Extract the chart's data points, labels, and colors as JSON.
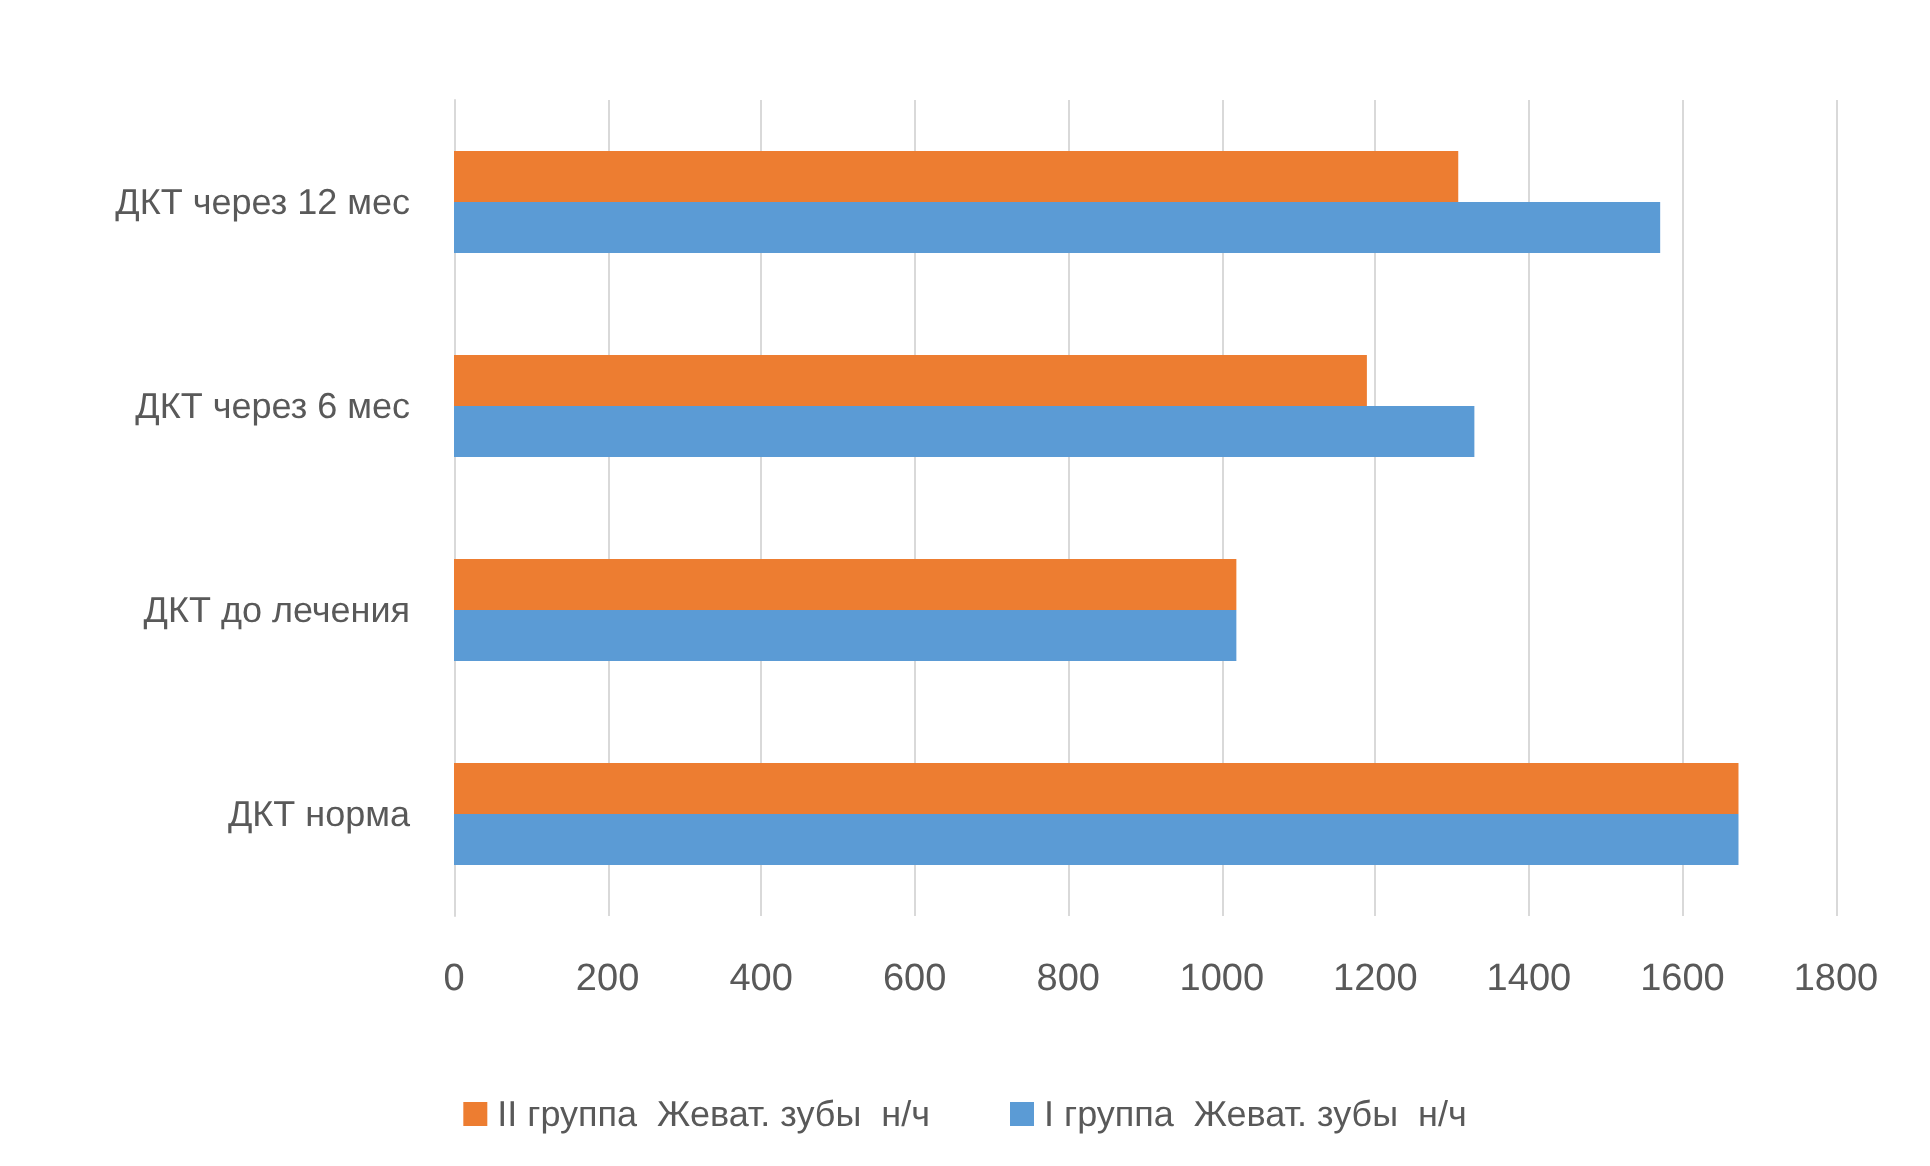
{
  "chart_data": {
    "type": "bar",
    "orientation": "horizontal",
    "categories": [
      "ДКТ через 12 мес",
      "ДКТ через 6 мес",
      "ДКТ до лечения",
      "ДКТ норма"
    ],
    "series": [
      {
        "name": "II группа  Жеват. зубы  н/ч",
        "color": "#ed7d31",
        "values": [
          1308,
          1189,
          1019,
          1673
        ]
      },
      {
        "name": "I группа  Жеват. зубы  н/ч",
        "color": "#5b9bd5",
        "values": [
          1571,
          1329,
          1019,
          1673
        ]
      }
    ],
    "xlim": [
      0,
      1800
    ],
    "xticks": [
      0,
      200,
      400,
      600,
      800,
      1000,
      1200,
      1400,
      1600,
      1800
    ],
    "grid": "x",
    "legend": "bottom"
  }
}
